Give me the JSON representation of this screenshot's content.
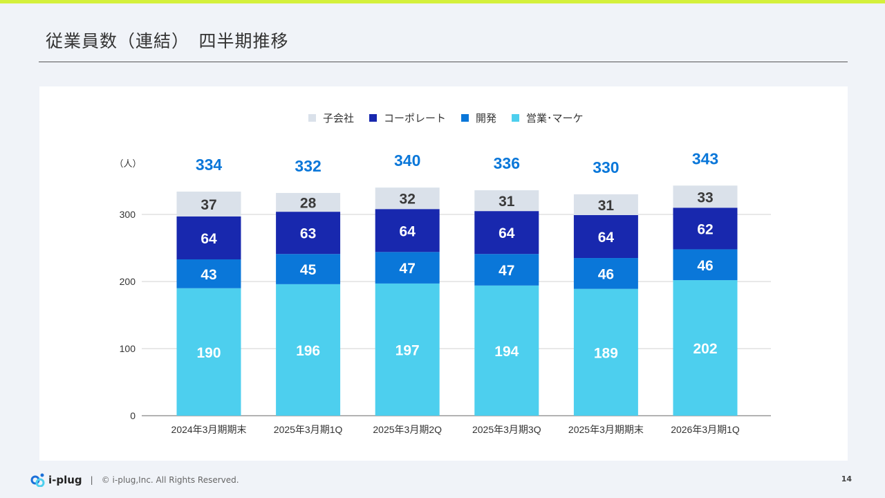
{
  "slide": {
    "title": "従業員数（連結）　四半期推移",
    "footer": {
      "logo": "i-plug",
      "separator": "|",
      "copyright": "© i-plug,Inc. All Rights Reserved."
    },
    "page_number": "14"
  },
  "chart_data": {
    "type": "bar",
    "stacked": true,
    "ylabel": "（人）",
    "ylim": [
      0,
      343
    ],
    "yticks": [
      0,
      100,
      200,
      300
    ],
    "grid": true,
    "legend_position": "top",
    "categories": [
      "2024年3月期期末",
      "2025年3月期1Q",
      "2025年3月期2Q",
      "2025年3月期3Q",
      "2025年3月期期末",
      "2026年3月期1Q"
    ],
    "series": [
      {
        "name": "営業･マーケ",
        "color": "#4dcfee",
        "label_color": "#ffffff",
        "values": [
          190,
          196,
          197,
          194,
          189,
          202
        ]
      },
      {
        "name": "開発",
        "color": "#0a77d9",
        "label_color": "#ffffff",
        "values": [
          43,
          45,
          47,
          47,
          46,
          46
        ]
      },
      {
        "name": "コーポレート",
        "color": "#1828ae",
        "label_color": "#ffffff",
        "values": [
          64,
          63,
          64,
          64,
          64,
          62
        ]
      },
      {
        "name": "子会社",
        "color": "#dae1ea",
        "label_color": "#3a3a3a",
        "values": [
          37,
          28,
          32,
          31,
          31,
          33
        ]
      }
    ],
    "legend_order": [
      "子会社",
      "コーポレート",
      "開発",
      "営業･マーケ"
    ],
    "totals": [
      334,
      332,
      340,
      336,
      330,
      343
    ],
    "totals_color": "#0a77d9"
  }
}
